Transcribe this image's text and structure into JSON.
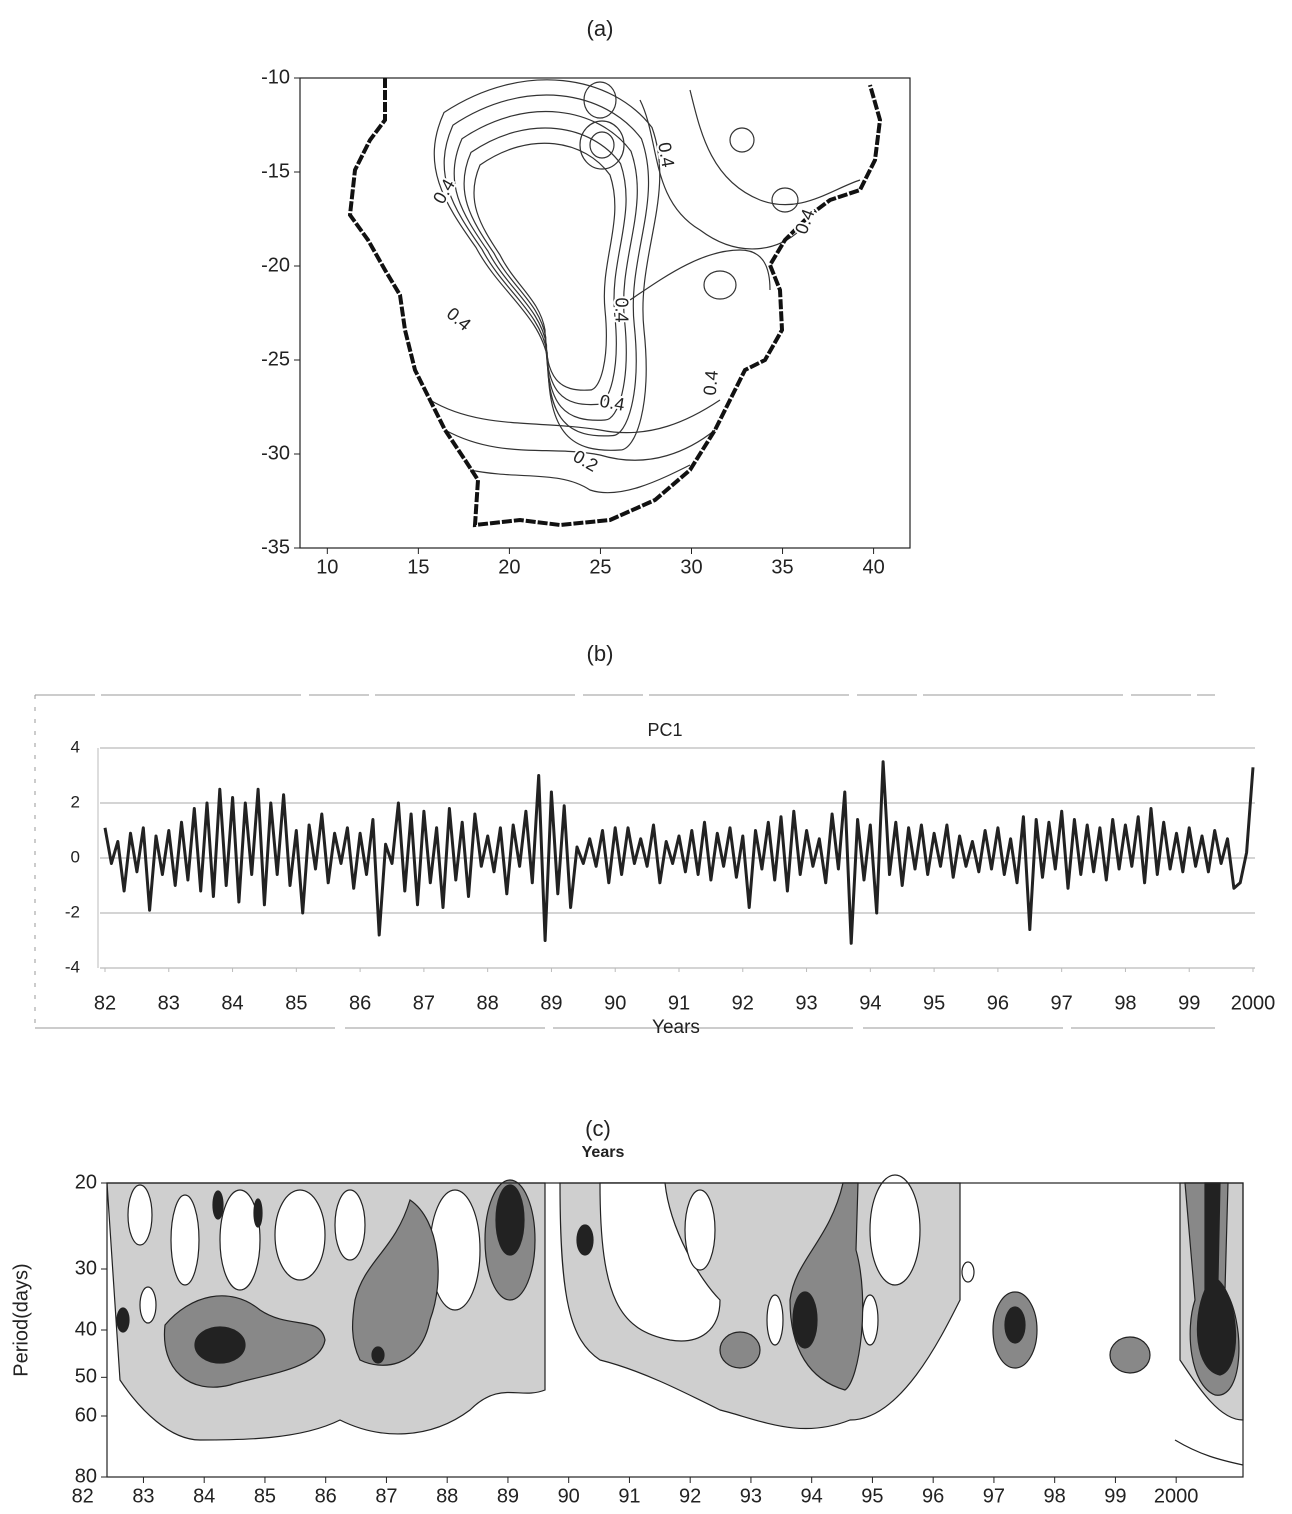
{
  "chart_data": [
    {
      "type": "contour",
      "title": "(a)",
      "xlim": [
        8.5,
        42
      ],
      "xticks": [
        10,
        15,
        20,
        25,
        30,
        35,
        40
      ],
      "ylim": [
        -35,
        -10
      ],
      "yticks": [
        -10,
        -15,
        -20,
        -25,
        -30,
        -35
      ],
      "annotations": [
        "0.4",
        "0.4",
        "0.4",
        "0.4",
        "0.4",
        "0.4",
        "0.2",
        "0.4"
      ]
    },
    {
      "type": "line",
      "title": "(b)",
      "x_label": "Years",
      "x": [
        1982,
        1982.1,
        1982.2,
        1982.3,
        1982.4,
        1982.5,
        1982.6,
        1982.7,
        1982.8,
        1982.9,
        1983,
        1983.1,
        1983.2,
        1983.3,
        1983.4,
        1983.5,
        1983.6,
        1983.7,
        1983.8,
        1983.9,
        1984,
        1984.1,
        1984.2,
        1984.3,
        1984.4,
        1984.5,
        1984.6,
        1984.7,
        1984.8,
        1984.9,
        1985,
        1985.1,
        1985.2,
        1985.3,
        1985.4,
        1985.5,
        1985.6,
        1985.7,
        1985.8,
        1985.9,
        1986,
        1986.1,
        1986.2,
        1986.3,
        1986.4,
        1986.5,
        1986.6,
        1986.7,
        1986.8,
        1986.9,
        1987,
        1987.1,
        1987.2,
        1987.3,
        1987.4,
        1987.5,
        1987.6,
        1987.7,
        1987.8,
        1987.9,
        1988,
        1988.1,
        1988.2,
        1988.3,
        1988.4,
        1988.5,
        1988.6,
        1988.7,
        1988.8,
        1988.9,
        1989,
        1989.1,
        1989.2,
        1989.3,
        1989.4,
        1989.5,
        1989.6,
        1989.7,
        1989.8,
        1989.9,
        1990,
        1990.1,
        1990.2,
        1990.3,
        1990.4,
        1990.5,
        1990.6,
        1990.7,
        1990.8,
        1990.9,
        1991,
        1991.1,
        1991.2,
        1991.3,
        1991.4,
        1991.5,
        1991.6,
        1991.7,
        1991.8,
        1991.9,
        1992,
        1992.1,
        1992.2,
        1992.3,
        1992.4,
        1992.5,
        1992.6,
        1992.7,
        1992.8,
        1992.9,
        1993,
        1993.1,
        1993.2,
        1993.3,
        1993.4,
        1993.5,
        1993.6,
        1993.7,
        1993.8,
        1993.9,
        1994,
        1994.1,
        1994.2,
        1994.3,
        1994.4,
        1994.5,
        1994.6,
        1994.7,
        1994.8,
        1994.9,
        1995,
        1995.1,
        1995.2,
        1995.3,
        1995.4,
        1995.5,
        1995.6,
        1995.7,
        1995.8,
        1995.9,
        1996,
        1996.1,
        1996.2,
        1996.3,
        1996.4,
        1996.5,
        1996.6,
        1996.7,
        1996.8,
        1996.9,
        1997,
        1997.1,
        1997.2,
        1997.3,
        1997.4,
        1997.5,
        1997.6,
        1997.7,
        1997.8,
        1997.9,
        1998,
        1998.1,
        1998.2,
        1998.3,
        1998.4,
        1998.5,
        1998.6,
        1998.7,
        1998.8,
        1998.9,
        1999,
        1999.1,
        1999.2,
        1999.3,
        1999.4,
        1999.5,
        1999.6,
        1999.7,
        1999.8,
        1999.9,
        2000
      ],
      "series": [
        {
          "name": "PC1",
          "color": "#222222",
          "values": [
            1.1,
            -0.2,
            0.6,
            -1.2,
            0.9,
            -0.5,
            1.1,
            -1.9,
            0.8,
            -0.6,
            1.0,
            -1.0,
            1.3,
            -0.8,
            1.8,
            -1.2,
            2.0,
            -1.4,
            2.5,
            -1.0,
            2.2,
            -1.6,
            2.0,
            -0.6,
            2.5,
            -1.7,
            2.0,
            -0.6,
            2.3,
            -1.0,
            1.0,
            -2.0,
            1.2,
            -0.4,
            1.6,
            -0.9,
            0.9,
            -0.2,
            1.1,
            -1.1,
            0.9,
            -0.6,
            1.4,
            -2.8,
            0.5,
            -0.2,
            2.0,
            -1.2,
            1.6,
            -1.7,
            1.7,
            -0.9,
            1.1,
            -1.8,
            1.8,
            -0.8,
            1.3,
            -1.4,
            1.6,
            -0.3,
            0.8,
            -0.5,
            1.1,
            -1.3,
            1.2,
            -0.3,
            1.7,
            -0.9,
            3.0,
            -3.0,
            2.4,
            -1.3,
            1.9,
            -1.8,
            0.4,
            -0.2,
            0.7,
            -0.3,
            1.0,
            -0.9,
            1.1,
            -0.6,
            1.1,
            -0.2,
            0.7,
            -0.3,
            1.2,
            -0.9,
            0.6,
            -0.2,
            0.8,
            -0.5,
            1.0,
            -0.6,
            1.3,
            -0.8,
            0.9,
            -0.3,
            1.1,
            -0.7,
            0.8,
            -1.8,
            1.0,
            -0.4,
            1.3,
            -0.8,
            1.5,
            -1.2,
            1.7,
            -0.6,
            1.0,
            -0.3,
            0.7,
            -0.9,
            1.6,
            -0.4,
            2.4,
            -3.1,
            1.4,
            -0.8,
            1.2,
            -2.0,
            3.5,
            -0.6,
            1.3,
            -1.0,
            1.1,
            -0.4,
            1.2,
            -0.6,
            0.9,
            -0.3,
            1.2,
            -0.7,
            0.8,
            -0.3,
            0.6,
            -0.5,
            1.0,
            -0.4,
            1.1,
            -0.6,
            0.7,
            -0.9,
            1.5,
            -2.6,
            1.4,
            -0.7,
            1.3,
            -0.4,
            1.7,
            -1.1,
            1.4,
            -0.6,
            1.2,
            -0.5,
            1.1,
            -0.8,
            1.4,
            -0.4,
            1.2,
            -0.3,
            1.5,
            -0.9,
            1.8,
            -0.6,
            1.3,
            -0.4,
            0.9,
            -0.5,
            1.1,
            -0.3,
            0.8,
            -0.5,
            1.0,
            -0.2,
            0.7,
            -1.1,
            -0.9,
            0.2,
            3.3
          ]
        }
      ],
      "xlim": [
        1982,
        2000
      ],
      "xticks": [
        {
          "value": 1982,
          "label": "82"
        },
        {
          "value": 1983,
          "label": "83"
        },
        {
          "value": 1984,
          "label": "84"
        },
        {
          "value": 1985,
          "label": "85"
        },
        {
          "value": 1986,
          "label": "86"
        },
        {
          "value": 1987,
          "label": "87"
        },
        {
          "value": 1988,
          "label": "88"
        },
        {
          "value": 1989,
          "label": "89"
        },
        {
          "value": 1990,
          "label": "90"
        },
        {
          "value": 1991,
          "label": "91"
        },
        {
          "value": 1992,
          "label": "92"
        },
        {
          "value": 1993,
          "label": "93"
        },
        {
          "value": 1994,
          "label": "94"
        },
        {
          "value": 1995,
          "label": "95"
        },
        {
          "value": 1996,
          "label": "96"
        },
        {
          "value": 1997,
          "label": "97"
        },
        {
          "value": 1998,
          "label": "98"
        },
        {
          "value": 1999,
          "label": "99"
        },
        2000
      ],
      "ylim": [
        -4,
        4
      ],
      "yticks": [
        -4,
        -2,
        0,
        2,
        4
      ],
      "grid": true
    },
    {
      "type": "contour",
      "title": "(c)",
      "x_label": "Years",
      "y_label": "Period(days)",
      "xlim": [
        1982.4,
        2001.1
      ],
      "xticks": [
        {
          "value": 1982,
          "label": "82"
        },
        {
          "value": 1983,
          "label": "83"
        },
        {
          "value": 1984,
          "label": "84"
        },
        {
          "value": 1985,
          "label": "85"
        },
        {
          "value": 1986,
          "label": "86"
        },
        {
          "value": 1987,
          "label": "87"
        },
        {
          "value": 1988,
          "label": "88"
        },
        {
          "value": 1989,
          "label": "89"
        },
        {
          "value": 1990,
          "label": "90"
        },
        {
          "value": 1991,
          "label": "91"
        },
        {
          "value": 1992,
          "label": "92"
        },
        {
          "value": 1993,
          "label": "93"
        },
        {
          "value": 1994,
          "label": "94"
        },
        {
          "value": 1995,
          "label": "95"
        },
        {
          "value": 1996,
          "label": "96"
        },
        {
          "value": 1997,
          "label": "97"
        },
        {
          "value": 1998,
          "label": "98"
        },
        {
          "value": 1999,
          "label": "99"
        },
        2000
      ],
      "ylim": [
        20,
        80
      ],
      "yticks": [
        20,
        30,
        40,
        50,
        60,
        80
      ],
      "log_scale": true,
      "y_inverted": true
    }
  ]
}
